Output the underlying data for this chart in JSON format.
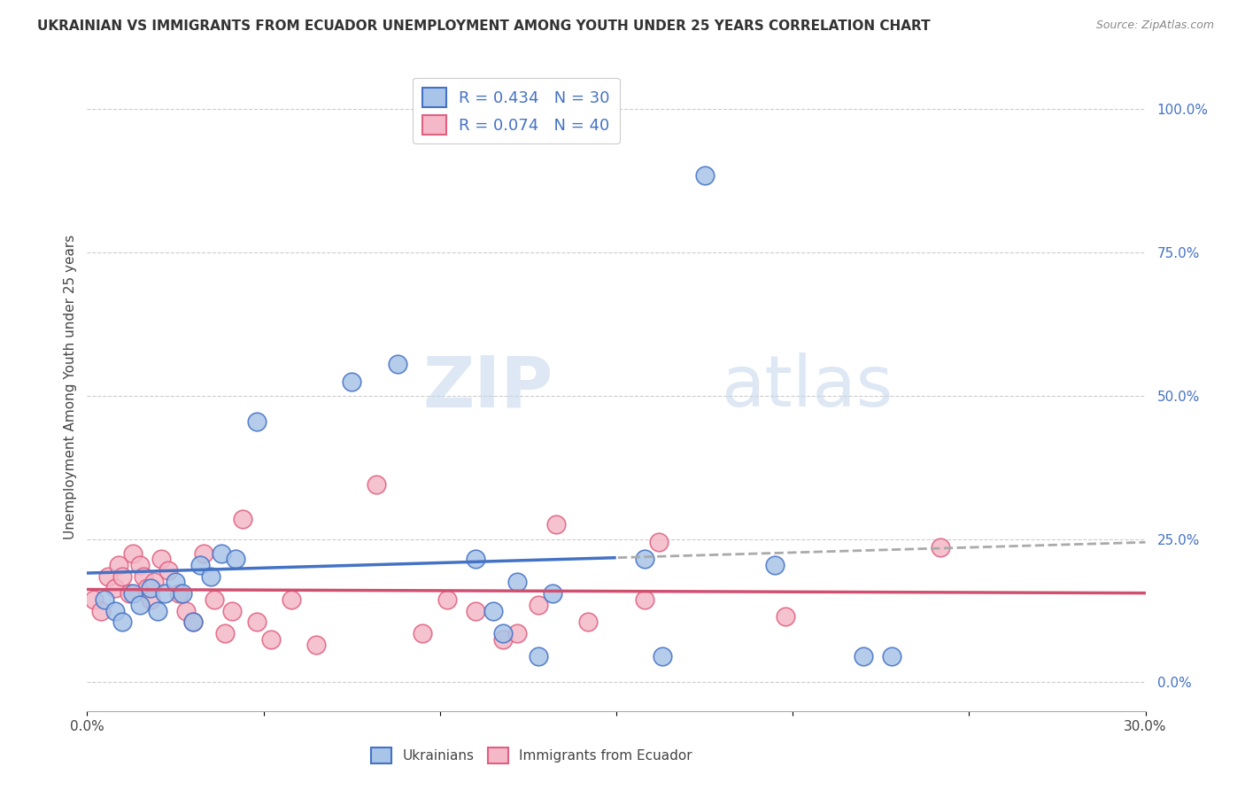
{
  "title": "UKRAINIAN VS IMMIGRANTS FROM ECUADOR UNEMPLOYMENT AMONG YOUTH UNDER 25 YEARS CORRELATION CHART",
  "source": "Source: ZipAtlas.com",
  "ylabel": "Unemployment Among Youth under 25 years",
  "xlim": [
    0.0,
    0.3
  ],
  "ylim": [
    -0.05,
    1.08
  ],
  "right_yticks": [
    0.0,
    0.25,
    0.5,
    0.75,
    1.0
  ],
  "right_yticklabels": [
    "0.0%",
    "25.0%",
    "50.0%",
    "75.0%",
    "100.0%"
  ],
  "xticklabels": [
    "0.0%",
    "",
    "",
    "",
    "",
    "",
    "30.0%"
  ],
  "blue_R": 0.434,
  "blue_N": 30,
  "pink_R": 0.074,
  "pink_N": 40,
  "blue_fill_color": "#A8C4E8",
  "pink_fill_color": "#F4B8C8",
  "blue_edge_color": "#4472C4",
  "pink_edge_color": "#E06080",
  "blue_line_color": "#4472C4",
  "pink_line_color": "#D05070",
  "dashed_line_color": "#AAAAAA",
  "background_color": "#FFFFFF",
  "blue_x": [
    0.005,
    0.008,
    0.01,
    0.013,
    0.015,
    0.018,
    0.02,
    0.022,
    0.025,
    0.027,
    0.03,
    0.032,
    0.035,
    0.038,
    0.042,
    0.048,
    0.075,
    0.088,
    0.11,
    0.115,
    0.118,
    0.122,
    0.128,
    0.132,
    0.158,
    0.163,
    0.175,
    0.195,
    0.22,
    0.228
  ],
  "blue_y": [
    0.145,
    0.125,
    0.105,
    0.155,
    0.135,
    0.165,
    0.125,
    0.155,
    0.175,
    0.155,
    0.105,
    0.205,
    0.185,
    0.225,
    0.215,
    0.455,
    0.525,
    0.555,
    0.215,
    0.125,
    0.085,
    0.175,
    0.045,
    0.155,
    0.215,
    0.045,
    0.885,
    0.205,
    0.045,
    0.045
  ],
  "pink_x": [
    0.002,
    0.004,
    0.006,
    0.008,
    0.009,
    0.01,
    0.012,
    0.013,
    0.015,
    0.016,
    0.017,
    0.018,
    0.019,
    0.021,
    0.023,
    0.026,
    0.028,
    0.03,
    0.033,
    0.036,
    0.039,
    0.041,
    0.044,
    0.048,
    0.052,
    0.058,
    0.065,
    0.082,
    0.095,
    0.102,
    0.11,
    0.118,
    0.122,
    0.128,
    0.133,
    0.142,
    0.158,
    0.162,
    0.198,
    0.242
  ],
  "pink_y": [
    0.145,
    0.125,
    0.185,
    0.165,
    0.205,
    0.185,
    0.155,
    0.225,
    0.205,
    0.185,
    0.165,
    0.145,
    0.175,
    0.215,
    0.195,
    0.155,
    0.125,
    0.105,
    0.225,
    0.145,
    0.085,
    0.125,
    0.285,
    0.105,
    0.075,
    0.145,
    0.065,
    0.345,
    0.085,
    0.145,
    0.125,
    0.075,
    0.085,
    0.135,
    0.275,
    0.105,
    0.145,
    0.245,
    0.115,
    0.235
  ]
}
